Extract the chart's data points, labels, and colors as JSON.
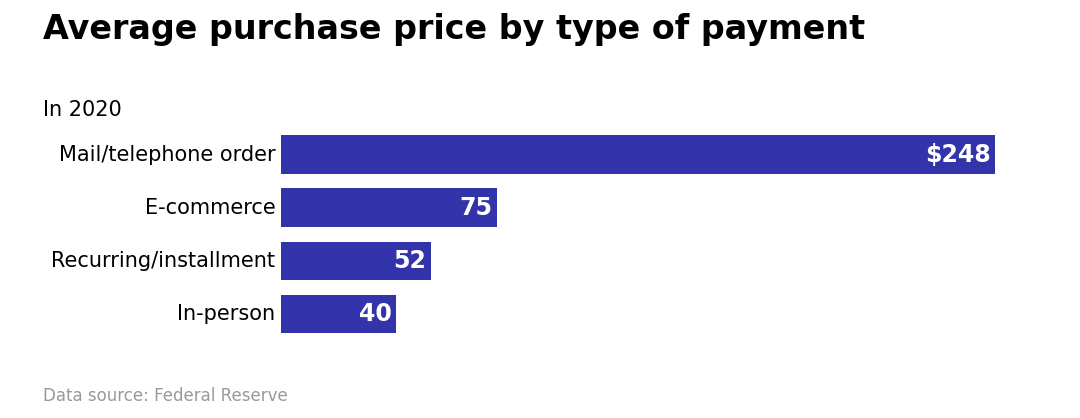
{
  "title": "Average purchase price by type of payment",
  "subtitle": "In 2020",
  "footnote": "Data source: Federal Reserve",
  "categories": [
    "Mail/telephone order",
    "E-commerce",
    "Recurring/installment",
    "In-person"
  ],
  "values": [
    248,
    75,
    52,
    40
  ],
  "bar_color": "#3333aa",
  "label_texts": [
    "$248",
    "75",
    "52",
    "40"
  ],
  "background_color": "#ffffff",
  "title_fontsize": 24,
  "subtitle_fontsize": 15,
  "footnote_fontsize": 12,
  "label_fontsize": 17,
  "category_fontsize": 15,
  "xlim": [
    0,
    270
  ]
}
